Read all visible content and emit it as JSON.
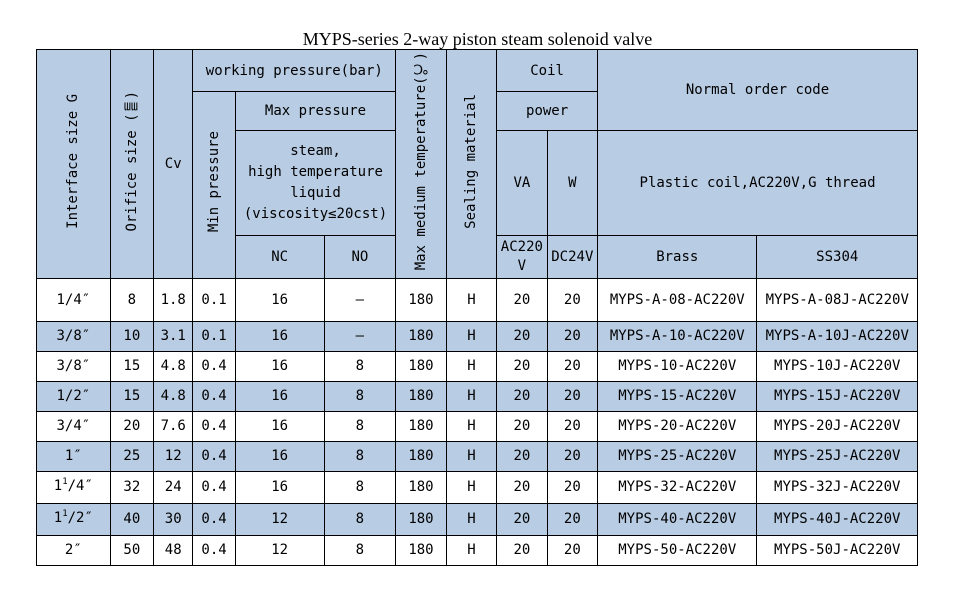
{
  "title": "MYPS-series 2-way piston steam solenoid valve",
  "headers": {
    "interface_size": "Interface size G",
    "orifice_size": "Orifice size (㎜)",
    "cv": "Cv",
    "working_pressure": "working pressure(bar)",
    "min_pressure": "Min pressure",
    "max_pressure": "Max pressure",
    "max_pressure_medium": "steam,\nhigh temperature\nliquid\n(viscosity≤20cst)",
    "nc": "NC",
    "no": "NO",
    "max_medium_temp": "Max medium temperature(℃)",
    "sealing_material": "Sealing material",
    "coil": "Coil",
    "power": "power",
    "va": "VA",
    "w": "W",
    "ac220v": "AC220V",
    "dc24v": "DC24V",
    "normal_order_code": "Normal order code",
    "coil_spec": "Plastic coil,AC220V,G thread",
    "brass": "Brass",
    "ss304": "SS304"
  },
  "rows": [
    {
      "size_whole": "",
      "size_sup": "",
      "size_sub": "",
      "size": "1/4″",
      "orifice": "8",
      "cv": "1.8",
      "min_p": "0.1",
      "nc": "16",
      "no": "–",
      "temp": "180",
      "seal": "H",
      "va": "20",
      "w": "20",
      "brass": "MYPS-A-08-AC220V",
      "ss304": "MYPS-A-08J-AC220V",
      "shaded": false
    },
    {
      "size_whole": "",
      "size_sup": "",
      "size_sub": "",
      "size": "3/8″",
      "orifice": "10",
      "cv": "3.1",
      "min_p": "0.1",
      "nc": "16",
      "no": "–",
      "temp": "180",
      "seal": "H",
      "va": "20",
      "w": "20",
      "brass": "MYPS-A-10-AC220V",
      "ss304": "MYPS-A-10J-AC220V",
      "shaded": true
    },
    {
      "size_whole": "",
      "size_sup": "",
      "size_sub": "",
      "size": "3/8″",
      "orifice": "15",
      "cv": "4.8",
      "min_p": "0.4",
      "nc": "16",
      "no": "8",
      "temp": "180",
      "seal": "H",
      "va": "20",
      "w": "20",
      "brass": "MYPS-10-AC220V",
      "ss304": "MYPS-10J-AC220V",
      "shaded": false
    },
    {
      "size_whole": "",
      "size_sup": "",
      "size_sub": "",
      "size": "1/2″",
      "orifice": "15",
      "cv": "4.8",
      "min_p": "0.4",
      "nc": "16",
      "no": "8",
      "temp": "180",
      "seal": "H",
      "va": "20",
      "w": "20",
      "brass": "MYPS-15-AC220V",
      "ss304": "MYPS-15J-AC220V",
      "shaded": true
    },
    {
      "size_whole": "",
      "size_sup": "",
      "size_sub": "",
      "size": "3/4″",
      "orifice": "20",
      "cv": "7.6",
      "min_p": "0.4",
      "nc": "16",
      "no": "8",
      "temp": "180",
      "seal": "H",
      "va": "20",
      "w": "20",
      "brass": "MYPS-20-AC220V",
      "ss304": "MYPS-20J-AC220V",
      "shaded": false
    },
    {
      "size_whole": "",
      "size_sup": "",
      "size_sub": "",
      "size": "1″",
      "orifice": "25",
      "cv": "12",
      "min_p": "0.4",
      "nc": "16",
      "no": "8",
      "temp": "180",
      "seal": "H",
      "va": "20",
      "w": "20",
      "brass": "MYPS-25-AC220V",
      "ss304": "MYPS-25J-AC220V",
      "shaded": true
    },
    {
      "size_whole": "1",
      "size_sup": "1",
      "size_sub": "/4″",
      "size": "",
      "orifice": "32",
      "cv": "24",
      "min_p": "0.4",
      "nc": "16",
      "no": "8",
      "temp": "180",
      "seal": "H",
      "va": "20",
      "w": "20",
      "brass": "MYPS-32-AC220V",
      "ss304": "MYPS-32J-AC220V",
      "shaded": false
    },
    {
      "size_whole": "1",
      "size_sup": "1",
      "size_sub": "/2″",
      "size": "",
      "orifice": "40",
      "cv": "30",
      "min_p": "0.4",
      "nc": "12",
      "no": "8",
      "temp": "180",
      "seal": "H",
      "va": "20",
      "w": "20",
      "brass": "MYPS-40-AC220V",
      "ss304": "MYPS-40J-AC220V",
      "shaded": true
    },
    {
      "size_whole": "",
      "size_sup": "",
      "size_sub": "",
      "size": "2″",
      "orifice": "50",
      "cv": "48",
      "min_p": "0.4",
      "nc": "12",
      "no": "8",
      "temp": "180",
      "seal": "H",
      "va": "20",
      "w": "20",
      "brass": "MYPS-50-AC220V",
      "ss304": "MYPS-50J-AC220V",
      "shaded": false
    }
  ],
  "colors": {
    "header_fill": "#b8cce4",
    "border": "#000000",
    "background": "#ffffff"
  }
}
